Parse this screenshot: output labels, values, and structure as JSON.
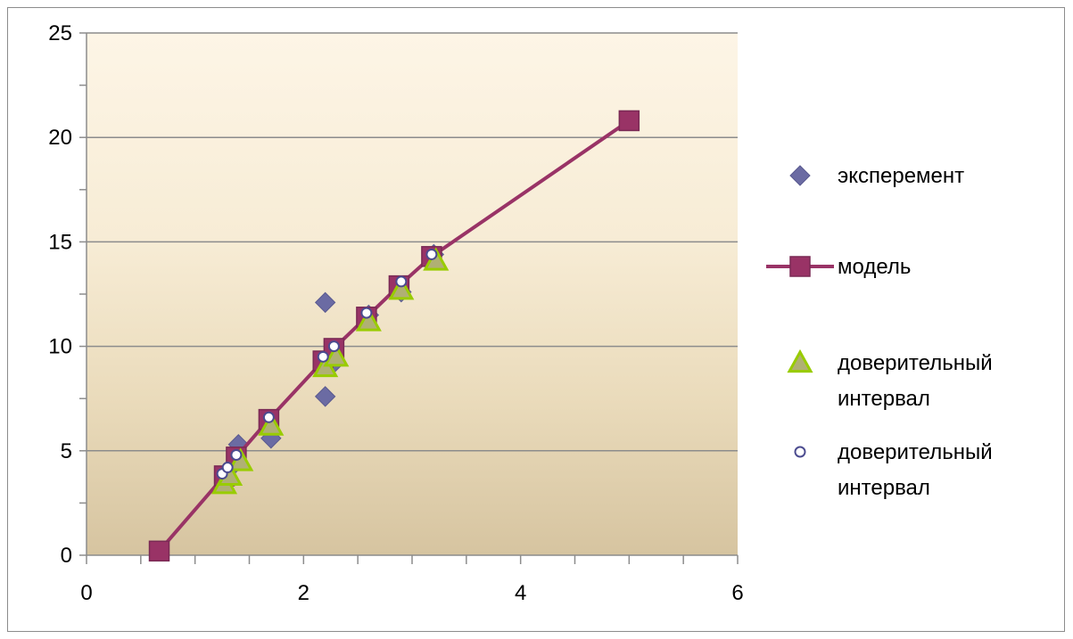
{
  "chart_data": {
    "type": "scatter",
    "title": "",
    "xlabel": "",
    "ylabel": "",
    "xlim": [
      0,
      6
    ],
    "ylim": [
      0,
      25
    ],
    "x_ticks": [
      "0",
      "2",
      "4",
      "6"
    ],
    "y_ticks": [
      "0",
      "5",
      "10",
      "15",
      "20",
      "25"
    ],
    "grid": "horizontal major lines",
    "legend_position": "right",
    "series": [
      {
        "name": "эксперемент",
        "marker": "diamond",
        "line": false,
        "color": "#6B6BA3",
        "points": [
          [
            1.28,
            3.5
          ],
          [
            1.35,
            4.3
          ],
          [
            1.4,
            5.3
          ],
          [
            1.7,
            5.6
          ],
          [
            2.2,
            7.6
          ],
          [
            2.2,
            12.1
          ],
          [
            2.28,
            9.2
          ],
          [
            2.6,
            11.5
          ],
          [
            2.9,
            12.6
          ],
          [
            3.2,
            14.4
          ]
        ]
      },
      {
        "name": "модель",
        "marker": "square",
        "line": true,
        "color": "#993366",
        "points": [
          [
            0.67,
            0.2
          ],
          [
            1.27,
            3.8
          ],
          [
            1.38,
            4.7
          ],
          [
            1.68,
            6.5
          ],
          [
            2.18,
            9.3
          ],
          [
            2.28,
            9.9
          ],
          [
            2.58,
            11.4
          ],
          [
            2.88,
            12.9
          ],
          [
            3.18,
            14.3
          ],
          [
            5.0,
            20.8
          ]
        ]
      },
      {
        "name": "доверительный интервал",
        "legend_lines": [
          "доверительный",
          "интервал"
        ],
        "marker": "triangle",
        "line": false,
        "color": "#99CC00",
        "points": [
          [
            1.27,
            3.4
          ],
          [
            1.32,
            3.8
          ],
          [
            1.42,
            4.5
          ],
          [
            1.7,
            6.2
          ],
          [
            2.2,
            9.0
          ],
          [
            2.3,
            9.5
          ],
          [
            2.6,
            11.2
          ],
          [
            2.9,
            12.7
          ],
          [
            3.22,
            14.1
          ]
        ]
      },
      {
        "name": "доверительный интервал",
        "legend_lines": [
          "доверительный",
          "интервал"
        ],
        "marker": "circle",
        "line": false,
        "color": "#4B4B8F",
        "points": [
          [
            1.25,
            3.9
          ],
          [
            1.3,
            4.2
          ],
          [
            1.38,
            4.8
          ],
          [
            1.68,
            6.6
          ],
          [
            2.18,
            9.5
          ],
          [
            2.28,
            10.0
          ],
          [
            2.58,
            11.6
          ],
          [
            2.9,
            13.1
          ],
          [
            3.18,
            14.4
          ]
        ]
      }
    ]
  }
}
